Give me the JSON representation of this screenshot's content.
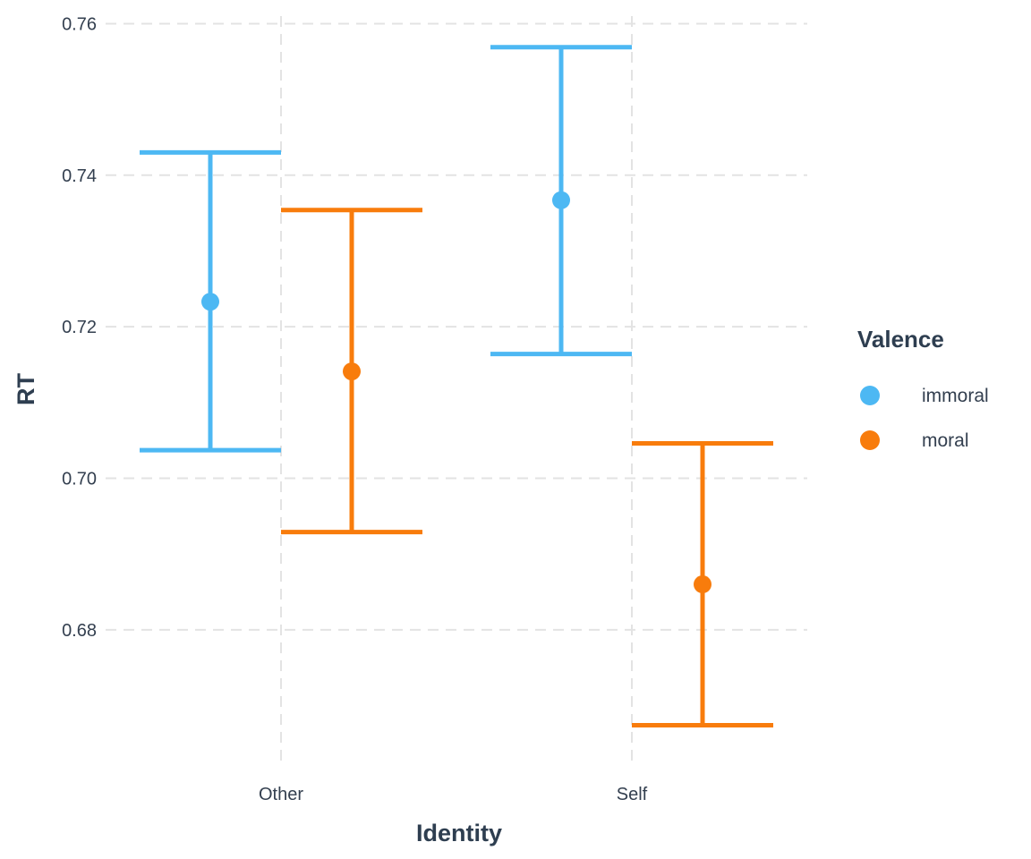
{
  "chart_data": {
    "type": "errorbar",
    "title": "",
    "xlabel": "Identity",
    "ylabel": "RT",
    "categories": [
      "Other",
      "Self"
    ],
    "ylim": [
      0.6625,
      0.761
    ],
    "yticks": [
      0.68,
      0.7,
      0.72,
      0.74,
      0.76
    ],
    "ytick_labels": [
      "0.68",
      "0.70",
      "0.72",
      "0.74",
      "0.76"
    ],
    "grid": true,
    "legend": {
      "title": "Valence",
      "position": "right"
    },
    "series": [
      {
        "name": "immoral",
        "color": "#4db8f3",
        "values": [
          0.7233,
          0.7367
        ],
        "lower": [
          0.7037,
          0.7164
        ],
        "upper": [
          0.743,
          0.7569
        ]
      },
      {
        "name": "moral",
        "color": "#f87c0c",
        "values": [
          0.7141,
          0.686
        ],
        "lower": [
          0.6929,
          0.6674
        ],
        "upper": [
          0.7354,
          0.7046
        ]
      }
    ]
  }
}
